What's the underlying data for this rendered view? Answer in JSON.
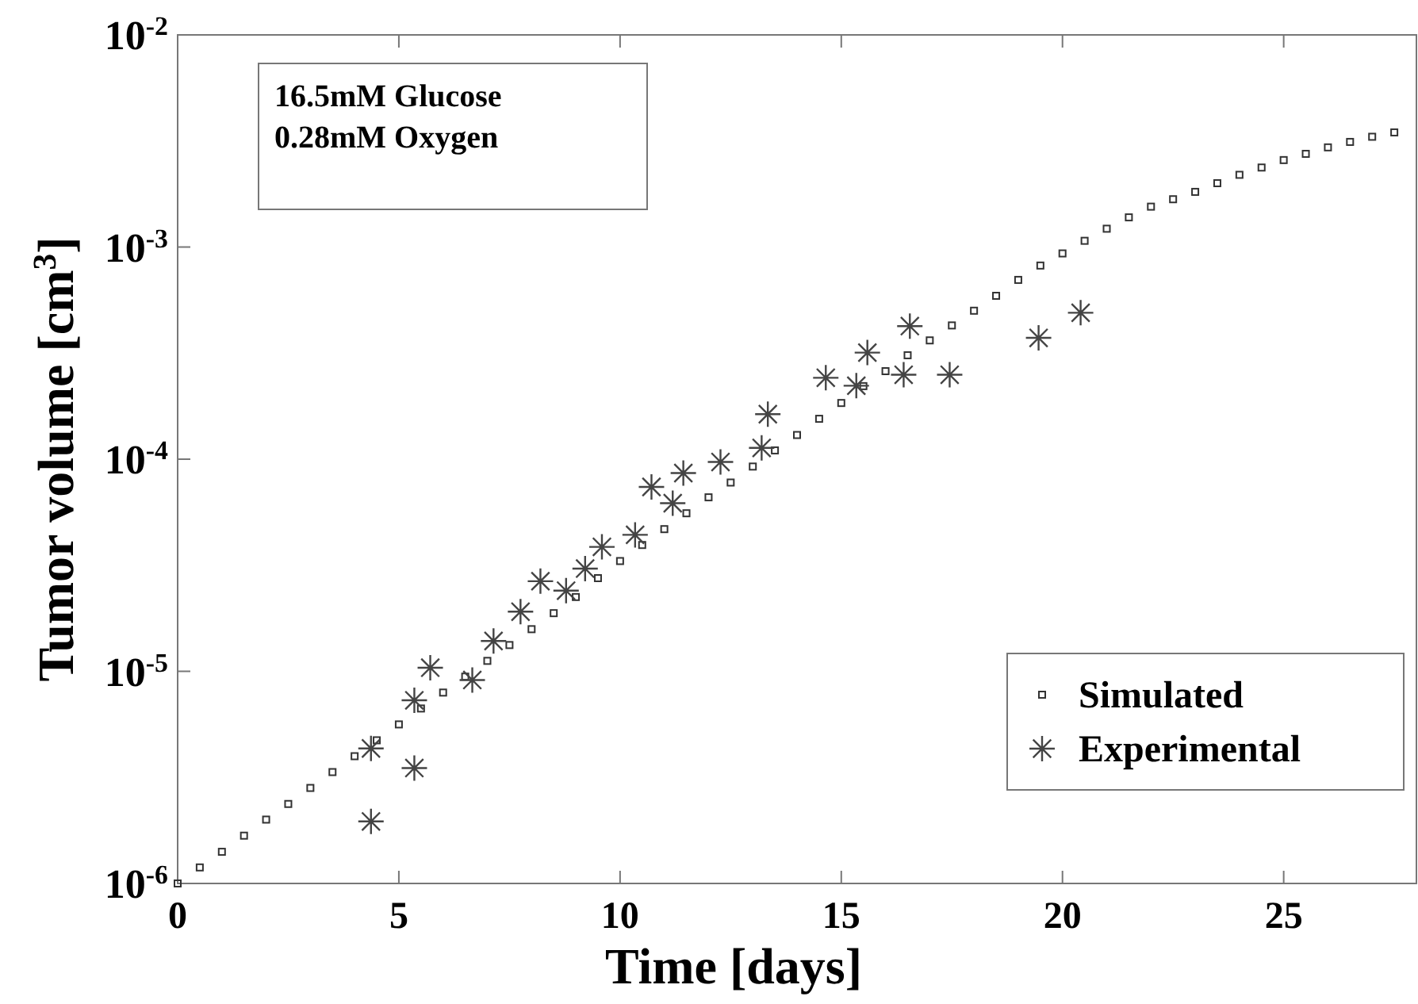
{
  "chart_data": {
    "type": "scatter",
    "xlabel": "Time [days]",
    "ylabel": "Tumor volume [cm$^{3}$]",
    "annotations": [
      "16.5mM Glucose\n0.28mM Oxygen"
    ],
    "log": "y",
    "xlim": [
      0,
      28
    ],
    "xticks": [
      0,
      5,
      10,
      15,
      20,
      25
    ],
    "ylim": [
      1e-06,
      0.01
    ],
    "yticks": [
      {
        "value": 1e-06,
        "label": "10$^{-6}$"
      },
      {
        "value": 1e-05,
        "label": "10$^{-5}$"
      },
      {
        "value": 0.0001,
        "label": "10$^{-4}$"
      },
      {
        "value": 0.001,
        "label": "10$^{-3}$"
      },
      {
        "value": 0.01,
        "label": "10$^{-2}$"
      }
    ],
    "grid": false,
    "legend": "bottom right",
    "series": [
      {
        "name": "Simulated",
        "marker": "square",
        "color": "#333333",
        "x": [
          0,
          0.5,
          1,
          1.5,
          2,
          2.5,
          3,
          3.5,
          4,
          4.5,
          5,
          5.5,
          6,
          6.5,
          7,
          7.5,
          8,
          8.5,
          9,
          9.5,
          10,
          10.5,
          11,
          11.5,
          12,
          12.5,
          13,
          13.5,
          14,
          14.5,
          15,
          15.5,
          16,
          16.5,
          17,
          17.5,
          18,
          18.5,
          19,
          19.5,
          20,
          20.5,
          21,
          21.5,
          22,
          22.5,
          23,
          23.5,
          24,
          24.5,
          25,
          25.5,
          26,
          26.5,
          27,
          27.5
        ],
        "values": [
          1e-06,
          1.19e-06,
          1.41e-06,
          1.68e-06,
          2e-06,
          2.37e-06,
          2.82e-06,
          3.35e-06,
          3.98e-06,
          4.73e-06,
          5.62e-06,
          6.68e-06,
          7.94e-06,
          9.44e-06,
          1.12e-05,
          1.33e-05,
          1.58e-05,
          1.88e-05,
          2.24e-05,
          2.75e-05,
          3.31e-05,
          3.94e-05,
          4.68e-05,
          5.56e-05,
          6.61e-05,
          7.76e-05,
          9.23e-05,
          0.00011,
          0.00013,
          0.000155,
          0.000184,
          0.000221,
          0.00026,
          0.000309,
          0.000363,
          0.000427,
          0.000501,
          0.000589,
          0.0007,
          0.000818,
          0.000933,
          0.00107,
          0.00122,
          0.00138,
          0.00155,
          0.00168,
          0.00182,
          0.002,
          0.00219,
          0.00237,
          0.00257,
          0.00275,
          0.00295,
          0.00313,
          0.00331,
          0.00347
        ]
      },
      {
        "name": "Experimental",
        "marker": "cross",
        "color": "#444444",
        "x": [
          4.37,
          4.37,
          5.35,
          5.35,
          5.71,
          6.66,
          7.14,
          7.75,
          8.2,
          8.78,
          9.21,
          9.59,
          10.34,
          10.71,
          11.19,
          11.43,
          12.27,
          13.2,
          13.34,
          14.65,
          15.34,
          15.59,
          16.41,
          16.55,
          17.45,
          19.46,
          20.41
        ],
        "values": [
          1.96e-06,
          4.33e-06,
          3.5e-06,
          7.3e-06,
          1.04e-05,
          9.1e-06,
          1.39e-05,
          1.91e-05,
          2.66e-05,
          2.4e-05,
          3.05e-05,
          3.86e-05,
          4.4e-05,
          7.4e-05,
          6.2e-05,
          8.6e-05,
          9.7e-05,
          0.000113,
          0.000163,
          0.000242,
          0.000222,
          0.000318,
          0.00025,
          0.000424,
          0.00025,
          0.000373,
          0.00049
        ]
      }
    ]
  }
}
